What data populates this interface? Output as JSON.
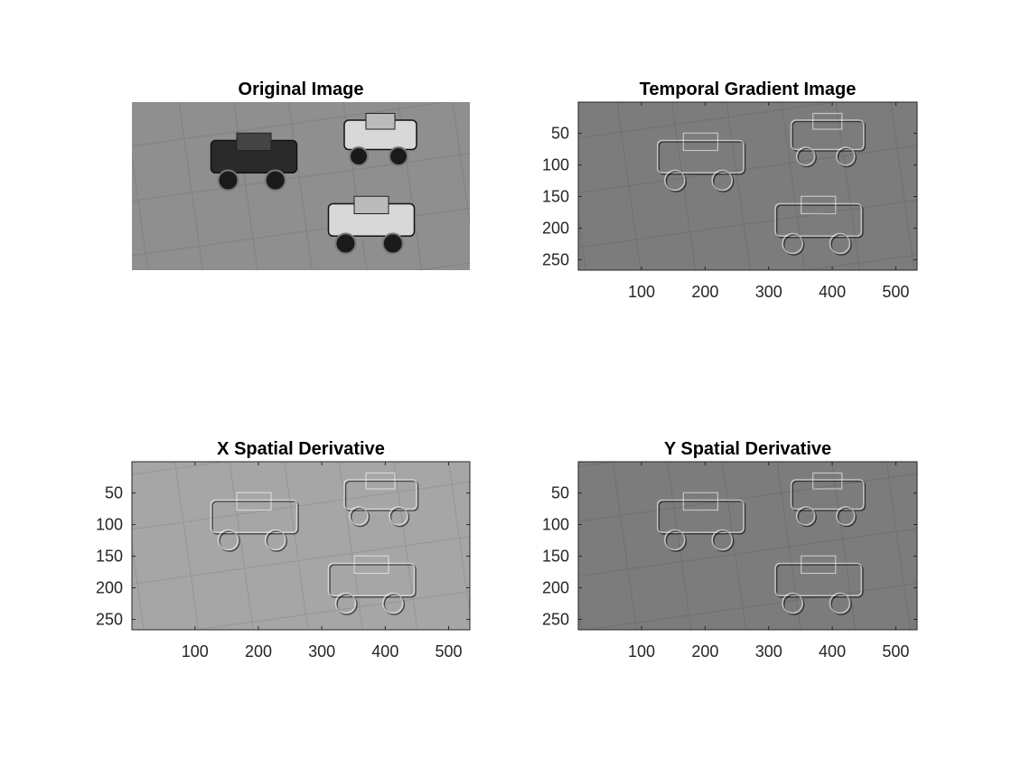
{
  "figure": {
    "background": "#ffffff",
    "panels": [
      {
        "id": "original",
        "title": "Original Image",
        "content": "grayscale photo of three toy trucks on tiled pavement",
        "show_axes": false,
        "x_ticks": [],
        "y_ticks": [],
        "tone": "photo"
      },
      {
        "id": "temporal",
        "title": "Temporal Gradient Image",
        "content": "temporal gradient map showing outlines of three toy trucks",
        "show_axes": true,
        "x_ticks": [
          "100",
          "200",
          "300",
          "400",
          "500"
        ],
        "y_ticks": [
          "50",
          "100",
          "150",
          "200",
          "250"
        ],
        "tone": "emboss"
      },
      {
        "id": "xderiv",
        "title": "X Spatial Derivative",
        "content": "x spatial derivative map, embossed outlines of three toy trucks",
        "show_axes": true,
        "x_ticks": [
          "100",
          "200",
          "300",
          "400",
          "500"
        ],
        "y_ticks": [
          "50",
          "100",
          "150",
          "200",
          "250"
        ],
        "tone": "emboss-light"
      },
      {
        "id": "yderiv",
        "title": "Y Spatial Derivative",
        "content": "y spatial derivative map, embossed outlines of three toy trucks",
        "show_axes": true,
        "x_ticks": [
          "100",
          "200",
          "300",
          "400",
          "500"
        ],
        "y_ticks": [
          "50",
          "100",
          "150",
          "200",
          "250"
        ],
        "tone": "emboss"
      }
    ]
  },
  "image_grid": {
    "x_range": [
      0.5,
      533.5
    ],
    "y_range": [
      0.5,
      266.5
    ]
  },
  "colors": {
    "photo_bg": "#8f8f8f",
    "emboss_bg": "#7c7c7c",
    "emboss_light_bg": "#a6a6a6",
    "axis": "#262626"
  }
}
